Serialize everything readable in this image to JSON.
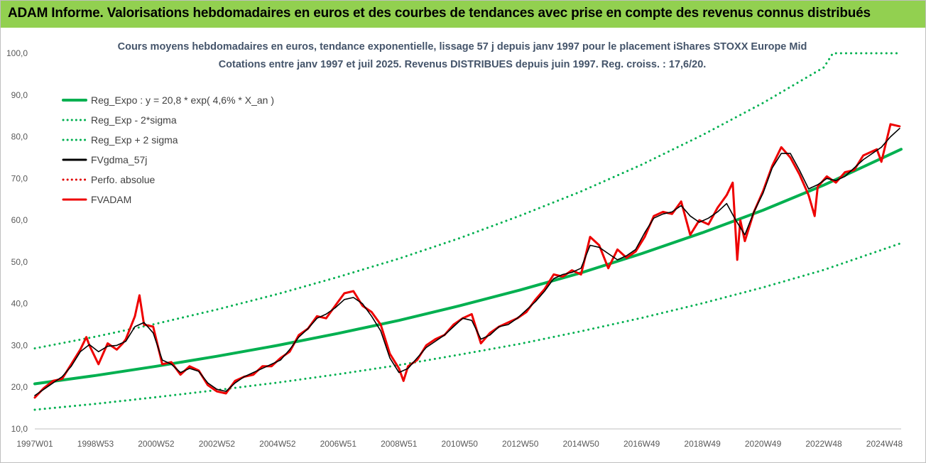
{
  "banner": {
    "title": "ADAM Informe. Valorisations hebdomadaires en euros et des courbes de tendances avec prise en compte des revenus connus distribués",
    "color": "#92d050"
  },
  "chart_data": {
    "type": "line",
    "title": "Cours moyens hebdomadaires en euros, tendance exponentielle, lissage 57 j depuis janv 1997  pour le placement iShares STOXX Europe Mid",
    "subtitle": "Cotations entre janv 1997 et juil 2025. Revenus DISTRIBUES depuis juin 1997. Reg. croiss. : 17,6/20.",
    "xlabel": "",
    "ylabel": "",
    "ylim": [
      10,
      100
    ],
    "xlim": [
      1997.0,
      2025.55
    ],
    "yticks": [
      "10,0",
      "20,0",
      "30,0",
      "40,0",
      "50,0",
      "60,0",
      "70,0",
      "80,0",
      "90,0",
      "100,0"
    ],
    "xticks": [
      {
        "label": "1997W01",
        "x": 1997.0
      },
      {
        "label": "1998W53",
        "x": 1999.0
      },
      {
        "label": "2000W52",
        "x": 2001.0
      },
      {
        "label": "2002W52",
        "x": 2003.0
      },
      {
        "label": "2004W52",
        "x": 2005.0
      },
      {
        "label": "2006W51",
        "x": 2007.0
      },
      {
        "label": "2008W51",
        "x": 2009.0
      },
      {
        "label": "2010W50",
        "x": 2011.0
      },
      {
        "label": "2012W50",
        "x": 2013.0
      },
      {
        "label": "2014W50",
        "x": 2015.0
      },
      {
        "label": "2016W49",
        "x": 2017.0
      },
      {
        "label": "2018W49",
        "x": 2019.0
      },
      {
        "label": "2020W49",
        "x": 2021.0
      },
      {
        "label": "2022W48",
        "x": 2023.0
      },
      {
        "label": "2024W48",
        "x": 2025.0
      }
    ],
    "grid": false,
    "legend_position": "top-left",
    "series": [
      {
        "name": "Reg_Expo : y = 20,8 * exp( 4,6% *  X_an )",
        "color": "#00b050",
        "style": "solid",
        "x": [
          1997.0,
          1999.0,
          2001.0,
          2003.0,
          2005.0,
          2007.0,
          2009.0,
          2011.0,
          2013.0,
          2015.0,
          2017.0,
          2019.0,
          2021.0,
          2023.0,
          2025.55
        ],
        "y": [
          20.8,
          22.8,
          25.0,
          27.4,
          30.0,
          32.9,
          36.0,
          39.5,
          43.3,
          47.4,
          52.0,
          57.0,
          62.4,
          68.4,
          77.0
        ]
      },
      {
        "name": "Reg_Exp - 2*sigma",
        "color": "#00b050",
        "style": "dotted",
        "x": [
          1997.0,
          1999.0,
          2001.0,
          2003.0,
          2005.0,
          2007.0,
          2009.0,
          2011.0,
          2013.0,
          2015.0,
          2017.0,
          2019.0,
          2021.0,
          2023.0,
          2025.55
        ],
        "y": [
          14.6,
          16.0,
          17.6,
          19.3,
          21.1,
          23.1,
          25.3,
          27.8,
          30.4,
          33.4,
          36.6,
          40.1,
          43.9,
          48.1,
          54.5
        ]
      },
      {
        "name": "Reg_Exp + 2 sigma",
        "color": "#00b050",
        "style": "dotted",
        "x": [
          1997.0,
          1999.0,
          2001.0,
          2003.0,
          2005.0,
          2007.0,
          2009.0,
          2011.0,
          2013.0,
          2015.0,
          2017.0,
          2019.0,
          2021.0,
          2023.0,
          2023.3,
          2025.55
        ],
        "y": [
          29.3,
          32.1,
          35.2,
          38.6,
          42.3,
          46.4,
          50.8,
          55.7,
          61.1,
          66.9,
          73.3,
          80.4,
          88.1,
          96.6,
          100.0,
          100.0
        ]
      },
      {
        "name": "FVgdma_57j",
        "color": "#000000",
        "style": "solid",
        "x": [
          1997.0,
          1997.3,
          1997.6,
          1997.9,
          1998.2,
          1998.5,
          1998.8,
          1999.1,
          1999.4,
          1999.7,
          2000.0,
          2000.3,
          2000.6,
          2000.9,
          2001.2,
          2001.5,
          2001.8,
          2002.1,
          2002.4,
          2002.7,
          2003.0,
          2003.3,
          2003.6,
          2003.9,
          2004.2,
          2004.5,
          2004.8,
          2005.1,
          2005.4,
          2005.7,
          2006.0,
          2006.3,
          2006.6,
          2006.9,
          2007.2,
          2007.5,
          2007.8,
          2008.1,
          2008.4,
          2008.7,
          2009.0,
          2009.3,
          2009.6,
          2009.9,
          2010.2,
          2010.5,
          2010.8,
          2011.1,
          2011.4,
          2011.7,
          2012.0,
          2012.3,
          2012.6,
          2012.9,
          2013.2,
          2013.5,
          2013.8,
          2014.1,
          2014.4,
          2014.7,
          2015.0,
          2015.3,
          2015.6,
          2015.9,
          2016.2,
          2016.5,
          2016.8,
          2017.1,
          2017.4,
          2017.7,
          2018.0,
          2018.3,
          2018.6,
          2018.9,
          2019.2,
          2019.5,
          2019.8,
          2020.1,
          2020.4,
          2020.7,
          2021.0,
          2021.3,
          2021.6,
          2021.9,
          2022.2,
          2022.5,
          2022.8,
          2023.1,
          2023.4,
          2023.7,
          2024.0,
          2024.3,
          2024.6,
          2024.9,
          2025.2,
          2025.5
        ],
        "y": [
          18.0,
          19.5,
          21.0,
          22.5,
          25.0,
          28.5,
          30.2,
          28.5,
          29.8,
          30.0,
          31.0,
          34.5,
          35.5,
          33.0,
          26.5,
          25.5,
          23.5,
          24.5,
          23.8,
          21.0,
          19.5,
          19.0,
          21.0,
          22.5,
          23.5,
          24.5,
          25.5,
          26.5,
          29.0,
          32.0,
          34.0,
          36.5,
          37.5,
          39.0,
          41.0,
          41.5,
          40.0,
          37.0,
          33.5,
          27.0,
          23.5,
          24.5,
          27.0,
          29.5,
          31.0,
          32.5,
          34.5,
          36.5,
          36.0,
          31.5,
          32.5,
          34.5,
          35.0,
          36.5,
          38.5,
          40.5,
          43.0,
          46.0,
          47.0,
          47.5,
          48.5,
          54.0,
          53.5,
          52.0,
          50.5,
          51.5,
          53.0,
          57.0,
          60.5,
          61.5,
          62.0,
          63.5,
          61.0,
          59.5,
          60.5,
          62.0,
          64.0,
          60.0,
          56.5,
          62.0,
          66.5,
          72.5,
          76.0,
          76.0,
          72.0,
          67.5,
          68.5,
          70.0,
          69.5,
          70.5,
          72.5,
          74.5,
          76.0,
          77.5,
          80.0,
          82.0
        ]
      },
      {
        "name": "Perfo. absolue",
        "color": "#e00000",
        "style": "dotted",
        "x": [],
        "y": []
      },
      {
        "name": "FVADAM",
        "color": "#ee0000",
        "style": "solid",
        "x": [
          1997.0,
          1997.3,
          1997.6,
          1997.9,
          1998.2,
          1998.5,
          1998.7,
          1998.8,
          1999.1,
          1999.4,
          1999.7,
          1999.9,
          2000.0,
          2000.3,
          2000.45,
          2000.6,
          2000.9,
          2001.2,
          2001.5,
          2001.8,
          2002.1,
          2002.4,
          2002.7,
          2003.0,
          2003.3,
          2003.6,
          2003.9,
          2004.2,
          2004.5,
          2004.8,
          2005.1,
          2005.4,
          2005.7,
          2006.0,
          2006.3,
          2006.6,
          2006.9,
          2007.2,
          2007.5,
          2007.8,
          2008.1,
          2008.4,
          2008.7,
          2009.0,
          2009.15,
          2009.3,
          2009.6,
          2009.9,
          2010.2,
          2010.5,
          2010.8,
          2011.1,
          2011.4,
          2011.7,
          2012.0,
          2012.3,
          2012.6,
          2012.9,
          2013.2,
          2013.5,
          2013.8,
          2014.1,
          2014.4,
          2014.7,
          2015.0,
          2015.3,
          2015.6,
          2015.9,
          2016.2,
          2016.5,
          2016.8,
          2017.1,
          2017.4,
          2017.7,
          2018.0,
          2018.3,
          2018.6,
          2018.9,
          2019.2,
          2019.5,
          2019.8,
          2020.0,
          2020.15,
          2020.25,
          2020.4,
          2020.7,
          2021.0,
          2021.3,
          2021.6,
          2021.9,
          2022.2,
          2022.5,
          2022.7,
          2022.8,
          2023.1,
          2023.4,
          2023.7,
          2024.0,
          2024.3,
          2024.6,
          2024.75,
          2024.9,
          2025.2,
          2025.5
        ],
        "y": [
          17.5,
          19.8,
          21.5,
          22.0,
          25.5,
          29.0,
          32.0,
          30.0,
          25.5,
          30.5,
          29.0,
          30.5,
          31.5,
          37.0,
          42.0,
          35.0,
          34.5,
          25.5,
          26.0,
          23.0,
          25.0,
          24.0,
          20.5,
          19.0,
          18.5,
          21.5,
          22.5,
          23.0,
          25.0,
          25.0,
          27.0,
          28.5,
          32.5,
          34.0,
          37.0,
          36.5,
          39.5,
          42.5,
          43.0,
          39.5,
          38.0,
          35.0,
          28.0,
          24.5,
          21.5,
          25.0,
          26.5,
          30.0,
          31.5,
          32.5,
          35.0,
          36.5,
          37.5,
          30.5,
          33.0,
          34.5,
          35.5,
          36.5,
          38.0,
          41.0,
          43.5,
          47.0,
          46.5,
          48.0,
          47.0,
          56.0,
          54.0,
          48.5,
          53.0,
          51.0,
          52.5,
          56.0,
          61.0,
          62.0,
          61.5,
          64.5,
          56.5,
          60.0,
          59.0,
          63.0,
          66.0,
          69.0,
          50.5,
          60.0,
          55.0,
          62.0,
          67.0,
          73.0,
          77.5,
          75.0,
          71.0,
          66.0,
          61.0,
          68.0,
          70.5,
          69.0,
          71.5,
          72.0,
          75.5,
          76.5,
          77.0,
          74.0,
          83.0,
          82.5
        ]
      }
    ]
  }
}
